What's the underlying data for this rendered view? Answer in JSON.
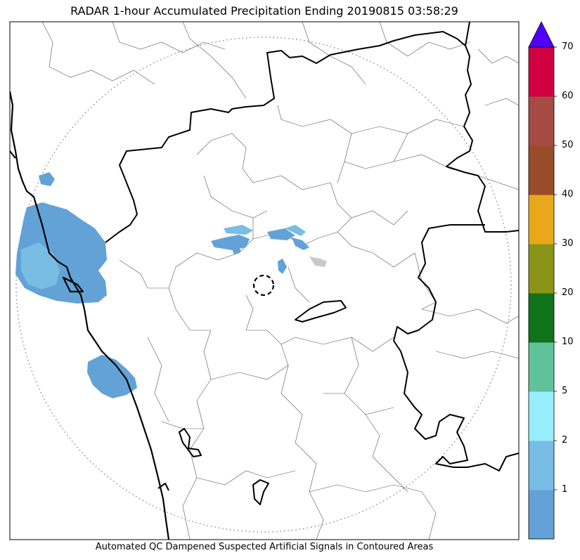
{
  "title": "RADAR 1-hour Accumulated Precipitation Ending 20190815 03:58:29",
  "caption": "Automated QC Dampened Suspected Artificial Signals in Contoured Areas",
  "colorbar": {
    "bins": [
      {
        "from": 0,
        "to": 1,
        "color": "#63a2d6"
      },
      {
        "from": 1,
        "to": 2,
        "color": "#77bde4"
      },
      {
        "from": 2,
        "to": 5,
        "color": "#96eefc"
      },
      {
        "from": 5,
        "to": 10,
        "color": "#5ec39b"
      },
      {
        "from": 10,
        "to": 20,
        "color": "#0f7319"
      },
      {
        "from": 20,
        "to": 30,
        "color": "#8a9416"
      },
      {
        "from": 30,
        "to": 40,
        "color": "#e8a81a"
      },
      {
        "from": 40,
        "to": 50,
        "color": "#9a4b28"
      },
      {
        "from": 50,
        "to": 60,
        "color": "#a74a44"
      },
      {
        "from": 60,
        "to": 70,
        "color": "#d10042"
      }
    ],
    "extend_color": "#5000ff",
    "tick_labels": [
      "1",
      "2",
      "5",
      "10",
      "20",
      "30",
      "40",
      "50",
      "60",
      "70"
    ]
  },
  "map": {
    "colors": {
      "rain_light": "#63a2d6",
      "rain_medium": "#77bde4",
      "clutter": "#c8c8c8",
      "coastline": "#000000",
      "district_border": "#555555",
      "range_ring": "#888888"
    },
    "features": [
      "radar-range-ring",
      "radar-site-marker",
      "coastline",
      "state-boundaries",
      "district-boundaries",
      "precipitation-echoes"
    ]
  }
}
